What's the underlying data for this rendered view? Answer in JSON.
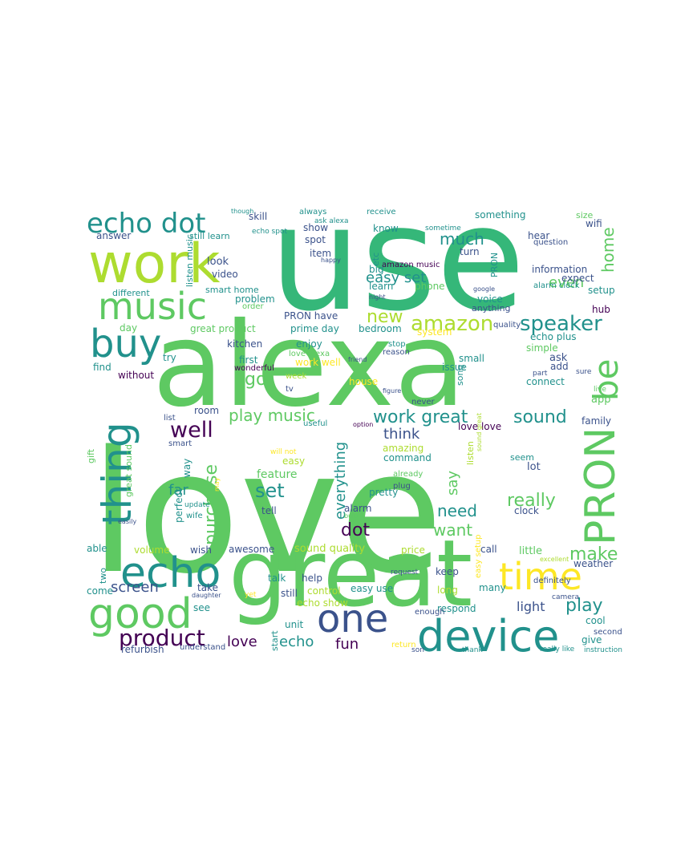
{
  "palette": {
    "dark_purple": "#440154",
    "indigo": "#3b528b",
    "teal": "#21918c",
    "green": "#5ec962",
    "yellow_green": "#addc30",
    "yellow": "#fde725",
    "sea_green": "#35b779",
    "background": "#ffffff"
  },
  "words": [
    {
      "text": "love",
      "color": "green"
    },
    {
      "text": "use",
      "color": "sea_green"
    },
    {
      "text": "alexa",
      "color": "green"
    },
    {
      "text": "great",
      "color": "green"
    },
    {
      "text": "work",
      "color": "yellow_green"
    },
    {
      "text": "device",
      "color": "teal"
    },
    {
      "text": "echo",
      "color": "teal"
    },
    {
      "text": "time",
      "color": "yellow"
    },
    {
      "text": "one",
      "color": "indigo"
    },
    {
      "text": "good",
      "color": "green"
    },
    {
      "text": "PRON",
      "color": "green"
    },
    {
      "text": "music",
      "color": "green"
    },
    {
      "text": "buy",
      "color": "teal"
    },
    {
      "text": "thing",
      "color": "teal"
    },
    {
      "text": "echo dot",
      "color": "teal"
    },
    {
      "text": "be",
      "color": "green"
    },
    {
      "text": "product",
      "color": "dark_purple"
    },
    {
      "text": "speaker",
      "color": "teal"
    },
    {
      "text": "amazon",
      "color": "yellow_green"
    },
    {
      "text": "play music",
      "color": "green"
    },
    {
      "text": "work great",
      "color": "teal"
    },
    {
      "text": "sound",
      "color": "teal"
    },
    {
      "text": "well",
      "color": "dark_purple"
    },
    {
      "text": "screen",
      "color": "indigo"
    },
    {
      "text": "play",
      "color": "teal"
    },
    {
      "text": "purchase",
      "color": "green"
    },
    {
      "text": "dot",
      "color": "dark_purple"
    },
    {
      "text": "new",
      "color": "yellow_green"
    },
    {
      "text": "make",
      "color": "green"
    },
    {
      "text": "set",
      "color": "teal"
    },
    {
      "text": "really",
      "color": "green"
    },
    {
      "text": "much",
      "color": "teal"
    },
    {
      "text": "easy set",
      "color": "teal"
    },
    {
      "text": "go",
      "color": "green"
    },
    {
      "text": "want",
      "color": "green"
    },
    {
      "text": "need",
      "color": "teal"
    },
    {
      "text": "home",
      "color": "green"
    },
    {
      "text": "echo",
      "color": "teal"
    },
    {
      "text": "love",
      "color": "dark_purple"
    },
    {
      "text": "fun",
      "color": "dark_purple"
    },
    {
      "text": "everything",
      "color": "teal"
    },
    {
      "text": "think",
      "color": "indigo"
    },
    {
      "text": "even",
      "color": "green"
    },
    {
      "text": "say",
      "color": "green"
    },
    {
      "text": "far",
      "color": "teal"
    },
    {
      "text": "light",
      "color": "indigo"
    },
    {
      "text": "sound quality",
      "color": "yellow_green"
    },
    {
      "text": "refurbish",
      "color": "indigo"
    },
    {
      "text": "great product",
      "color": "green"
    },
    {
      "text": "prime day",
      "color": "teal"
    },
    {
      "text": "echo plus",
      "color": "teal"
    },
    {
      "text": "little",
      "color": "green"
    },
    {
      "text": "feature",
      "color": "green"
    },
    {
      "text": "app",
      "color": "green"
    },
    {
      "text": "lot",
      "color": "indigo"
    },
    {
      "text": "ask",
      "color": "indigo"
    },
    {
      "text": "without",
      "color": "dark_purple"
    },
    {
      "text": "hub",
      "color": "dark_purple"
    },
    {
      "text": "look",
      "color": "indigo"
    },
    {
      "text": "kitchen",
      "color": "indigo"
    },
    {
      "text": "family",
      "color": "indigo"
    },
    {
      "text": "room",
      "color": "indigo"
    },
    {
      "text": "wish",
      "color": "indigo"
    },
    {
      "text": "awesome",
      "color": "indigo"
    },
    {
      "text": "help",
      "color": "indigo"
    },
    {
      "text": "keep",
      "color": "indigo"
    },
    {
      "text": "take",
      "color": "indigo"
    },
    {
      "text": "still",
      "color": "indigo"
    },
    {
      "text": "alarm",
      "color": "indigo"
    },
    {
      "text": "tell",
      "color": "indigo"
    },
    {
      "text": "add",
      "color": "indigo"
    },
    {
      "text": "call",
      "color": "indigo"
    },
    {
      "text": "weather",
      "color": "indigo"
    },
    {
      "text": "hear",
      "color": "indigo"
    },
    {
      "text": "wifi",
      "color": "indigo"
    },
    {
      "text": "turn",
      "color": "indigo"
    },
    {
      "text": "item",
      "color": "indigo"
    },
    {
      "text": "show",
      "color": "indigo"
    },
    {
      "text": "spot",
      "color": "indigo"
    },
    {
      "text": "skill",
      "color": "indigo"
    },
    {
      "text": "video",
      "color": "indigo"
    },
    {
      "text": "answer",
      "color": "indigo"
    },
    {
      "text": "expect",
      "color": "indigo"
    },
    {
      "text": "information",
      "color": "indigo"
    },
    {
      "text": "problem",
      "color": "teal"
    },
    {
      "text": "enjoy",
      "color": "teal"
    },
    {
      "text": "first",
      "color": "teal"
    },
    {
      "text": "bedroom",
      "color": "teal"
    },
    {
      "text": "PRON have",
      "color": "indigo"
    },
    {
      "text": "small",
      "color": "teal"
    },
    {
      "text": "issue",
      "color": "teal"
    },
    {
      "text": "connect",
      "color": "teal"
    },
    {
      "text": "love love",
      "color": "dark_purple"
    },
    {
      "text": "command",
      "color": "teal"
    },
    {
      "text": "pretty",
      "color": "teal"
    },
    {
      "text": "seem",
      "color": "teal"
    },
    {
      "text": "clock",
      "color": "indigo"
    },
    {
      "text": "easy use",
      "color": "teal"
    },
    {
      "text": "respond",
      "color": "teal"
    },
    {
      "text": "many",
      "color": "teal"
    },
    {
      "text": "cool",
      "color": "teal"
    },
    {
      "text": "give",
      "color": "teal"
    },
    {
      "text": "see",
      "color": "teal"
    },
    {
      "text": "unit",
      "color": "teal"
    },
    {
      "text": "start",
      "color": "teal"
    },
    {
      "text": "talk",
      "color": "teal"
    },
    {
      "text": "two",
      "color": "teal"
    },
    {
      "text": "come",
      "color": "teal"
    },
    {
      "text": "able",
      "color": "teal"
    },
    {
      "text": "perfect",
      "color": "teal"
    },
    {
      "text": "way",
      "color": "teal"
    },
    {
      "text": "find",
      "color": "teal"
    },
    {
      "text": "try",
      "color": "teal"
    },
    {
      "text": "different",
      "color": "teal"
    },
    {
      "text": "smart home",
      "color": "teal"
    },
    {
      "text": "setup",
      "color": "teal"
    },
    {
      "text": "simple",
      "color": "green"
    },
    {
      "text": "voice",
      "color": "teal"
    },
    {
      "text": "phone",
      "color": "green"
    },
    {
      "text": "learn",
      "color": "teal"
    },
    {
      "text": "big",
      "color": "teal"
    },
    {
      "text": "etc",
      "color": "teal"
    },
    {
      "text": "PRON",
      "color": "teal"
    },
    {
      "text": "know",
      "color": "teal"
    },
    {
      "text": "something",
      "color": "teal"
    },
    {
      "text": "size",
      "color": "green"
    },
    {
      "text": "day",
      "color": "green"
    },
    {
      "text": "volume",
      "color": "yellow_green"
    },
    {
      "text": "work well",
      "color": "yellow"
    },
    {
      "text": "house",
      "color": "yellow"
    },
    {
      "text": "easy",
      "color": "yellow_green"
    },
    {
      "text": "amazing",
      "color": "yellow_green"
    },
    {
      "text": "price",
      "color": "yellow_green"
    },
    {
      "text": "control",
      "color": "yellow_green"
    },
    {
      "text": "echo show",
      "color": "yellow_green"
    },
    {
      "text": "long",
      "color": "yellow_green"
    },
    {
      "text": "listen",
      "color": "yellow_green"
    },
    {
      "text": "gift",
      "color": "green"
    },
    {
      "text": "great sound",
      "color": "green"
    },
    {
      "text": "listen music",
      "color": "teal"
    },
    {
      "text": "still learn",
      "color": "teal"
    },
    {
      "text": "echo spot",
      "color": "teal"
    },
    {
      "text": "ask alexa",
      "color": "teal"
    },
    {
      "text": "always",
      "color": "teal"
    },
    {
      "text": "receive",
      "color": "teal"
    },
    {
      "text": "though",
      "color": "teal"
    },
    {
      "text": "sometime",
      "color": "teal"
    },
    {
      "text": "amazon music",
      "color": "dark_purple"
    },
    {
      "text": "night",
      "color": "indigo"
    },
    {
      "text": "anything",
      "color": "indigo"
    },
    {
      "text": "google",
      "color": "indigo"
    },
    {
      "text": "alarm clock",
      "color": "teal"
    },
    {
      "text": "quality",
      "color": "indigo"
    },
    {
      "text": "question",
      "color": "indigo"
    },
    {
      "text": "happy",
      "color": "indigo"
    },
    {
      "text": "order",
      "color": "green"
    },
    {
      "text": "system",
      "color": "yellow"
    },
    {
      "text": "wonderful",
      "color": "dark_purple"
    },
    {
      "text": "love alexa",
      "color": "green"
    },
    {
      "text": "reason",
      "color": "indigo"
    },
    {
      "text": "friend",
      "color": "indigo"
    },
    {
      "text": "song",
      "color": "teal"
    },
    {
      "text": "week",
      "color": "yellow_green"
    },
    {
      "text": "tv",
      "color": "indigo"
    },
    {
      "text": "figure",
      "color": "indigo"
    },
    {
      "text": "never",
      "color": "indigo"
    },
    {
      "text": "stop",
      "color": "teal"
    },
    {
      "text": "part",
      "color": "indigo"
    },
    {
      "text": "sure",
      "color": "indigo"
    },
    {
      "text": "live",
      "color": "green"
    },
    {
      "text": "list",
      "color": "indigo"
    },
    {
      "text": "useful",
      "color": "teal"
    },
    {
      "text": "option",
      "color": "dark_purple"
    },
    {
      "text": "smart",
      "color": "indigo"
    },
    {
      "text": "will not",
      "color": "yellow"
    },
    {
      "text": "already",
      "color": "green"
    },
    {
      "text": "plug",
      "color": "indigo"
    },
    {
      "text": "update",
      "color": "teal"
    },
    {
      "text": "wife",
      "color": "teal"
    },
    {
      "text": "bulb",
      "color": "green"
    },
    {
      "text": "may",
      "color": "yellow"
    },
    {
      "text": "easily",
      "color": "indigo"
    },
    {
      "text": "sound great",
      "color": "yellow_green"
    },
    {
      "text": "request",
      "color": "indigo"
    },
    {
      "text": "easy setup",
      "color": "yellow"
    },
    {
      "text": "camera",
      "color": "indigo"
    },
    {
      "text": "yet",
      "color": "yellow"
    },
    {
      "text": "daughter",
      "color": "indigo"
    },
    {
      "text": "enough",
      "color": "indigo"
    },
    {
      "text": "return",
      "color": "yellow"
    },
    {
      "text": "son",
      "color": "indigo"
    },
    {
      "text": "thank",
      "color": "teal"
    },
    {
      "text": "really like",
      "color": "teal"
    },
    {
      "text": "instruction",
      "color": "teal"
    },
    {
      "text": "understand",
      "color": "indigo"
    },
    {
      "text": "excellent",
      "color": "yellow_green"
    },
    {
      "text": "definitely",
      "color": "indigo"
    },
    {
      "text": "second",
      "color": "indigo"
    },
    {
      "text": "not know",
      "color": "indigo"
    },
    {
      "text": "right",
      "color": "yellow_green"
    }
  ]
}
